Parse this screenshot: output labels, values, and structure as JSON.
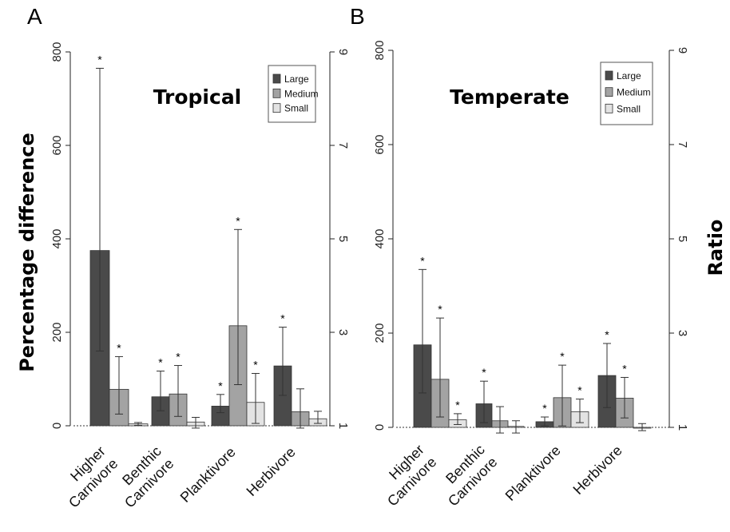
{
  "figure": {
    "left_axis_title": "Percentage difference",
    "right_axis_title": "Ratio"
  },
  "colors": {
    "Large": "#4a4a4a",
    "Medium": "#a3a3a3",
    "Small": "#e3e3e3"
  },
  "chart_data": [
    {
      "type": "bar",
      "panel": "A",
      "title": "Tropical",
      "categories": [
        "Higher\nCarnivore",
        "Benthic\nCarnivore",
        "Planktivore",
        "Herbivore"
      ],
      "ylabel": "Percentage difference",
      "ylabel_right": "Ratio",
      "ylim": [
        0,
        800
      ],
      "yticks": [
        0,
        200,
        400,
        600,
        800
      ],
      "right_ticks": [
        "1",
        "3",
        "5",
        "7",
        "9"
      ],
      "legend": [
        "Large",
        "Medium",
        "Small"
      ],
      "legend_position": "top-right",
      "series": [
        {
          "name": "Large",
          "values": [
            375,
            62,
            42,
            128
          ],
          "err_low": [
            160,
            32,
            28,
            65
          ],
          "err_high": [
            765,
            117,
            67,
            211
          ],
          "significant": [
            true,
            true,
            true,
            true
          ]
        },
        {
          "name": "Medium",
          "values": [
            78,
            68,
            214,
            30
          ],
          "err_low": [
            25,
            20,
            88,
            -5
          ],
          "err_high": [
            148,
            129,
            420,
            79
          ],
          "significant": [
            true,
            true,
            true,
            false
          ]
        },
        {
          "name": "Small",
          "values": [
            4,
            8,
            50,
            15
          ],
          "err_low": [
            1,
            -5,
            5,
            5
          ],
          "err_high": [
            7,
            18,
            112,
            31
          ],
          "significant": [
            false,
            false,
            true,
            false
          ]
        }
      ]
    },
    {
      "type": "bar",
      "panel": "B",
      "title": "Temperate",
      "categories": [
        "Higher\nCarnivore",
        "Benthic\nCarnivore",
        "Planktivore",
        "Herbivore"
      ],
      "ylabel": "Percentage difference",
      "ylabel_right": "Ratio",
      "ylim": [
        0,
        800
      ],
      "yticks": [
        0,
        200,
        400,
        600,
        800
      ],
      "right_ticks": [
        "1",
        "3",
        "5",
        "7",
        "9"
      ],
      "legend": [
        "Large",
        "Medium",
        "Small"
      ],
      "legend_position": "top-right",
      "series": [
        {
          "name": "Large",
          "values": [
            175,
            50,
            12,
            110
          ],
          "err_low": [
            73,
            10,
            3,
            42
          ],
          "err_high": [
            335,
            98,
            22,
            178
          ],
          "significant": [
            true,
            true,
            true,
            true
          ]
        },
        {
          "name": "Medium",
          "values": [
            102,
            14,
            63,
            62
          ],
          "err_low": [
            22,
            -12,
            3,
            20
          ],
          "err_high": [
            232,
            44,
            132,
            106
          ],
          "significant": [
            true,
            false,
            true,
            true
          ]
        },
        {
          "name": "Small",
          "values": [
            16,
            2,
            33,
            0
          ],
          "err_low": [
            6,
            -12,
            10,
            -7
          ],
          "err_high": [
            29,
            14,
            60,
            8
          ],
          "significant": [
            true,
            false,
            true,
            false
          ]
        }
      ]
    }
  ]
}
